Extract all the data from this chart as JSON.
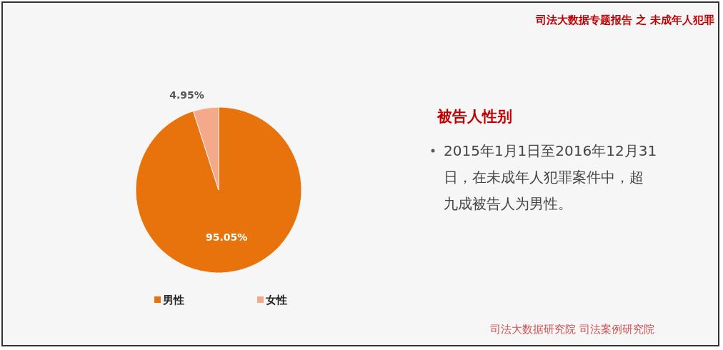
{
  "chart_data": {
    "type": "pie",
    "title": "被告人性别",
    "categories": [
      "男性",
      "女性"
    ],
    "values": [
      95.05,
      4.95
    ],
    "colors": [
      "#e8720c",
      "#f4a98a"
    ],
    "value_labels": [
      "95.05%",
      "4.95%"
    ],
    "legend": "bottom",
    "annotations": [
      "司法大数据专题报告 之 未成年人犯罪",
      "2015年1月1日至2016年12月31日，在未成年人犯罪案件中，超九成被告人为男性。",
      "司法大数据研究院 司法案例研究院"
    ]
  }
}
